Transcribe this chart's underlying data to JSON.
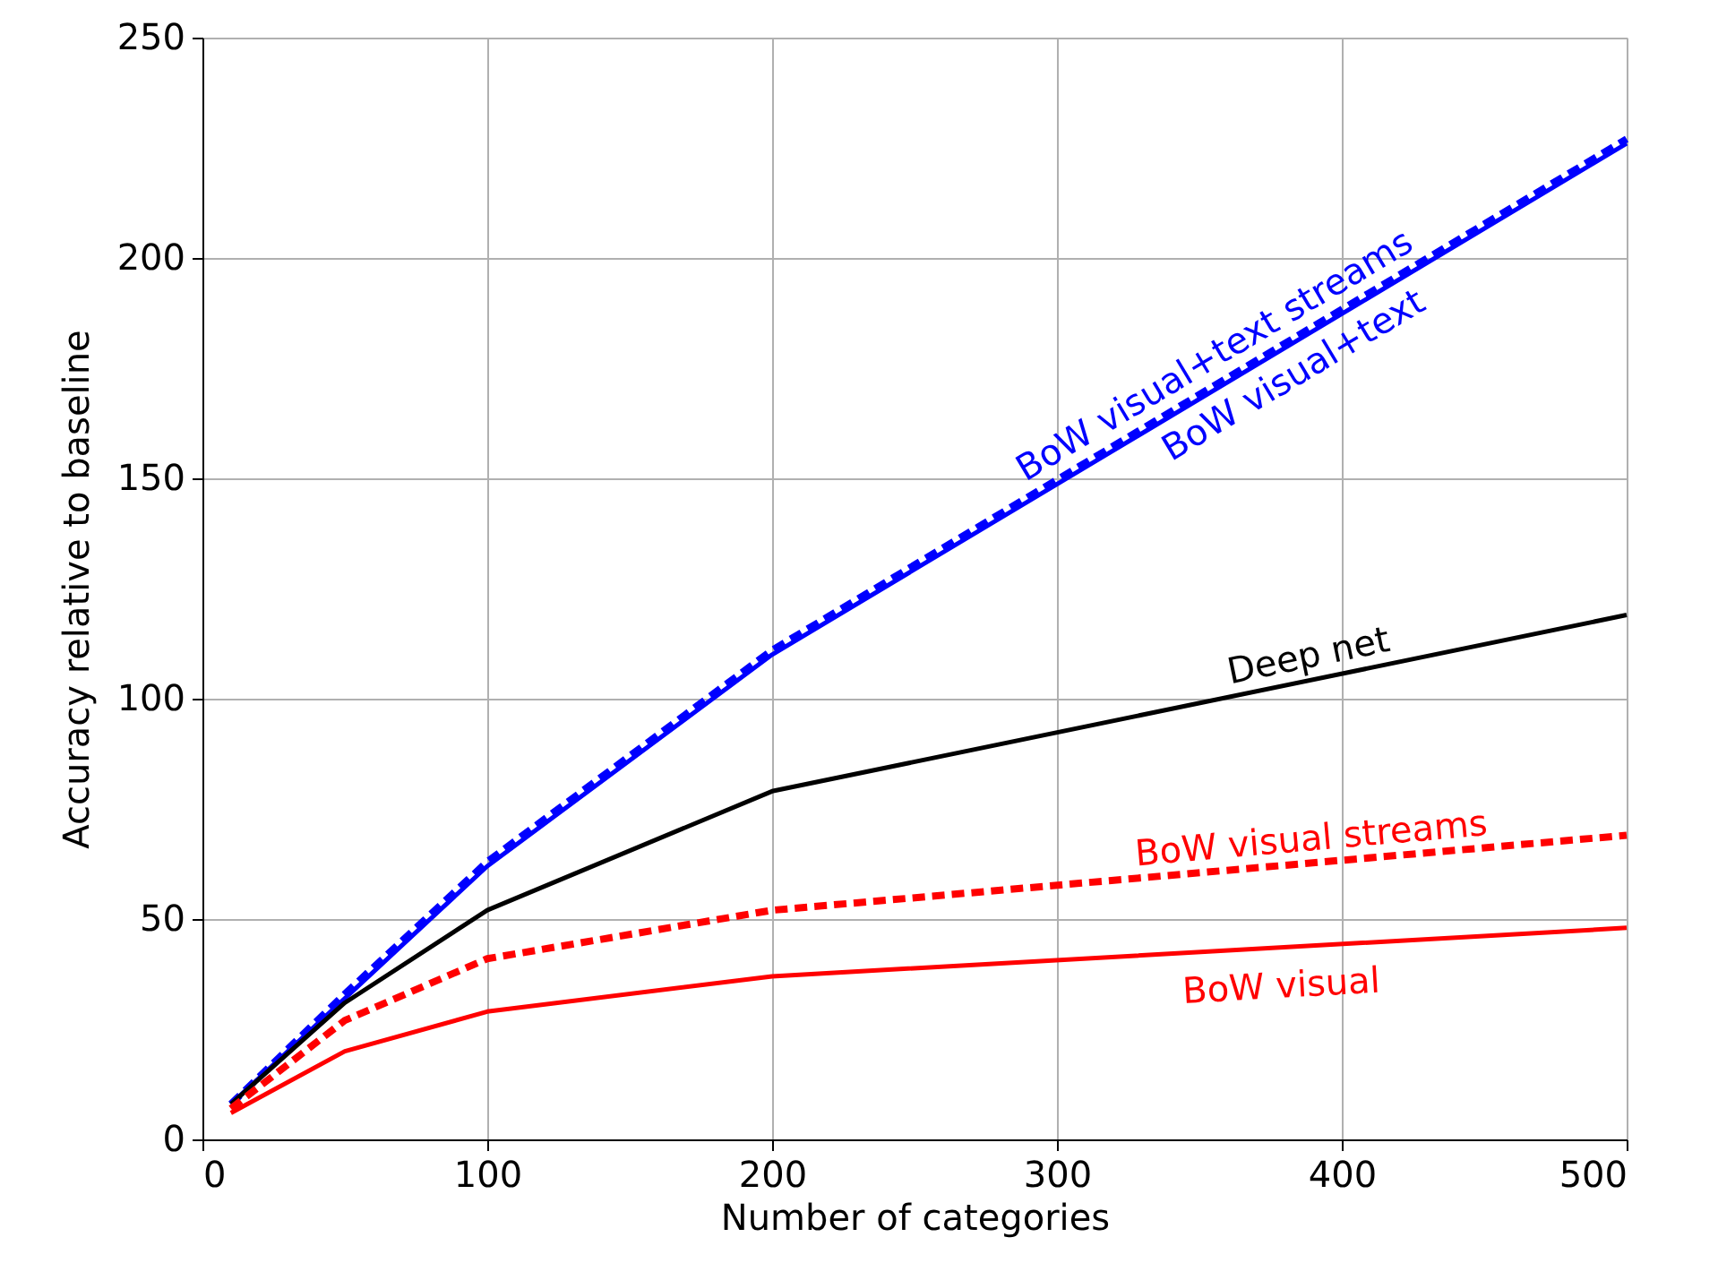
{
  "chart_data": {
    "type": "line",
    "xlabel": "Number of categories",
    "ylabel": "Accuracy relative to baseline",
    "x": [
      10,
      50,
      100,
      200,
      500
    ],
    "series": [
      {
        "name": "BoW visual+text streams",
        "color": "#0000ff",
        "line_style": "dashed",
        "values": [
          8,
          33,
          63,
          111,
          227
        ]
      },
      {
        "name": "BoW visual+text",
        "color": "#0000ff",
        "line_style": "solid",
        "values": [
          8,
          32,
          62,
          110,
          226
        ]
      },
      {
        "name": "Deep net",
        "color": "#000000",
        "line_style": "solid",
        "values": [
          8,
          31,
          52,
          79,
          119
        ]
      },
      {
        "name": "BoW visual streams",
        "color": "#ff0000",
        "line_style": "dashed",
        "values": [
          7,
          27,
          41,
          52,
          69
        ]
      },
      {
        "name": "BoW visual",
        "color": "#ff0000",
        "line_style": "solid",
        "values": [
          6,
          20,
          29,
          37,
          48
        ]
      }
    ],
    "xlim": [
      0,
      500
    ],
    "ylim": [
      0,
      250
    ],
    "xticks": [
      0,
      100,
      200,
      300,
      400,
      500
    ],
    "yticks": [
      0,
      50,
      100,
      150,
      200,
      250
    ],
    "grid": true,
    "legend": false,
    "marker": "none"
  }
}
